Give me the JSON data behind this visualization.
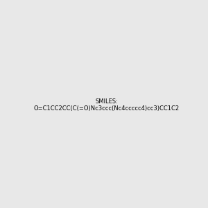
{
  "smiles": "O=C1CC2CC(C(=O)Nc3ccc(Nc4ccccc4)cc3)CC1C2",
  "title": "",
  "background_color": "#e8e8e8",
  "bond_color": "#1a1a1a",
  "atom_colors": {
    "O": "#ff0000",
    "N": "#0000cc"
  },
  "figsize": [
    3.0,
    3.0
  ],
  "dpi": 100
}
